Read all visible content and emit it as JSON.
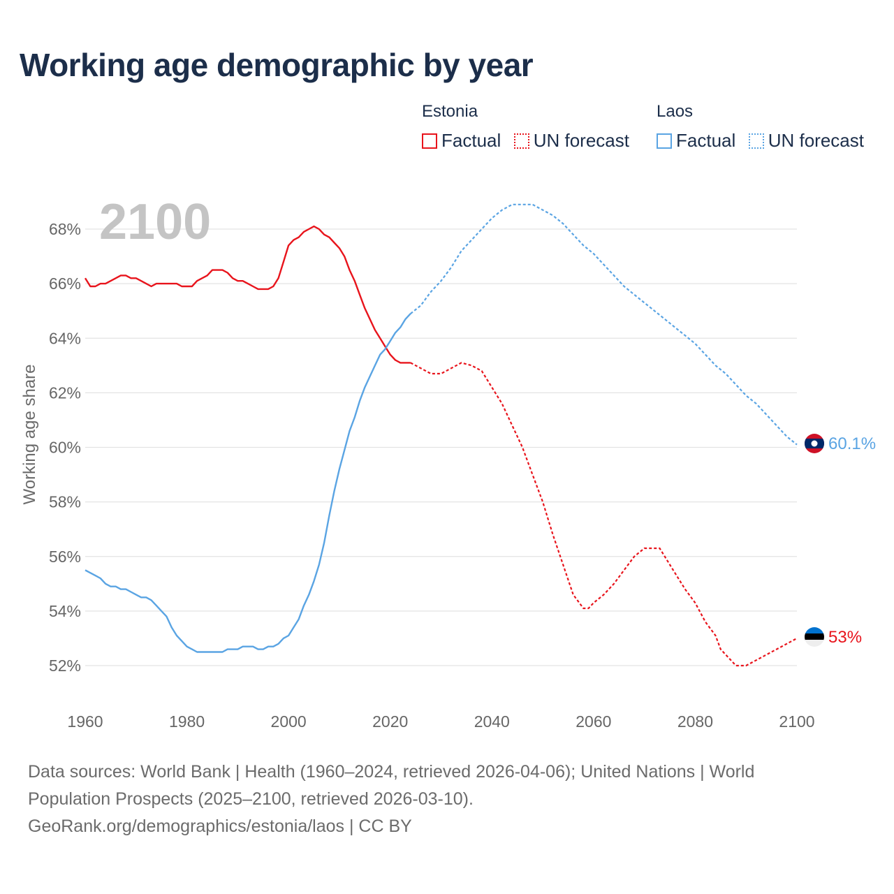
{
  "title": "Working age demographic by year",
  "legend": [
    {
      "group": "Estonia",
      "color": "#e8141c",
      "items": [
        {
          "label": "Factual",
          "style": "solid"
        },
        {
          "label": "UN forecast",
          "style": "dotted"
        }
      ]
    },
    {
      "group": "Laos",
      "color": "#5aa4e3",
      "items": [
        {
          "label": "Factual",
          "style": "solid"
        },
        {
          "label": "UN forecast",
          "style": "dotted"
        }
      ]
    }
  ],
  "year_display": "2100",
  "chart_data": {
    "type": "line",
    "title": "Working age demographic by year",
    "xlabel": "",
    "ylabel": "Working age share",
    "xlim": [
      1960,
      2100
    ],
    "ylim": [
      51.5,
      69.5
    ],
    "x_ticks": [
      1960,
      1980,
      2000,
      2020,
      2040,
      2060,
      2080,
      2100
    ],
    "y_ticks": [
      52,
      54,
      56,
      58,
      60,
      62,
      64,
      66,
      68
    ],
    "y_tick_labels": [
      "52%",
      "54%",
      "56%",
      "58%",
      "60%",
      "62%",
      "64%",
      "66%",
      "68%"
    ],
    "grid": true,
    "factual_end_year": 2024,
    "series": [
      {
        "name": "Estonia",
        "color": "#e8141c",
        "end_label": "53%",
        "points": [
          [
            1960,
            66.2
          ],
          [
            1961,
            65.9
          ],
          [
            1962,
            65.9
          ],
          [
            1963,
            66.0
          ],
          [
            1964,
            66.0
          ],
          [
            1965,
            66.1
          ],
          [
            1966,
            66.2
          ],
          [
            1967,
            66.3
          ],
          [
            1968,
            66.3
          ],
          [
            1969,
            66.2
          ],
          [
            1970,
            66.2
          ],
          [
            1971,
            66.1
          ],
          [
            1972,
            66.0
          ],
          [
            1973,
            65.9
          ],
          [
            1974,
            66.0
          ],
          [
            1975,
            66.0
          ],
          [
            1976,
            66.0
          ],
          [
            1977,
            66.0
          ],
          [
            1978,
            66.0
          ],
          [
            1979,
            65.9
          ],
          [
            1980,
            65.9
          ],
          [
            1981,
            65.9
          ],
          [
            1982,
            66.1
          ],
          [
            1983,
            66.2
          ],
          [
            1984,
            66.3
          ],
          [
            1985,
            66.5
          ],
          [
            1986,
            66.5
          ],
          [
            1987,
            66.5
          ],
          [
            1988,
            66.4
          ],
          [
            1989,
            66.2
          ],
          [
            1990,
            66.1
          ],
          [
            1991,
            66.1
          ],
          [
            1992,
            66.0
          ],
          [
            1993,
            65.9
          ],
          [
            1994,
            65.8
          ],
          [
            1995,
            65.8
          ],
          [
            1996,
            65.8
          ],
          [
            1997,
            65.9
          ],
          [
            1998,
            66.2
          ],
          [
            1999,
            66.8
          ],
          [
            2000,
            67.4
          ],
          [
            2001,
            67.6
          ],
          [
            2002,
            67.7
          ],
          [
            2003,
            67.9
          ],
          [
            2004,
            68.0
          ],
          [
            2005,
            68.1
          ],
          [
            2006,
            68.0
          ],
          [
            2007,
            67.8
          ],
          [
            2008,
            67.7
          ],
          [
            2009,
            67.5
          ],
          [
            2010,
            67.3
          ],
          [
            2011,
            67.0
          ],
          [
            2012,
            66.5
          ],
          [
            2013,
            66.1
          ],
          [
            2014,
            65.6
          ],
          [
            2015,
            65.1
          ],
          [
            2016,
            64.7
          ],
          [
            2017,
            64.3
          ],
          [
            2018,
            64.0
          ],
          [
            2019,
            63.7
          ],
          [
            2020,
            63.4
          ],
          [
            2021,
            63.2
          ],
          [
            2022,
            63.1
          ],
          [
            2023,
            63.1
          ],
          [
            2024,
            63.1
          ],
          [
            2026,
            62.9
          ],
          [
            2028,
            62.7
          ],
          [
            2030,
            62.7
          ],
          [
            2032,
            62.9
          ],
          [
            2034,
            63.1
          ],
          [
            2036,
            63.0
          ],
          [
            2038,
            62.8
          ],
          [
            2040,
            62.2
          ],
          [
            2042,
            61.6
          ],
          [
            2044,
            60.8
          ],
          [
            2046,
            60.0
          ],
          [
            2048,
            59.0
          ],
          [
            2050,
            58.0
          ],
          [
            2052,
            56.8
          ],
          [
            2054,
            55.7
          ],
          [
            2056,
            54.6
          ],
          [
            2058,
            54.1
          ],
          [
            2059,
            54.1
          ],
          [
            2060,
            54.3
          ],
          [
            2062,
            54.6
          ],
          [
            2064,
            55.0
          ],
          [
            2066,
            55.5
          ],
          [
            2068,
            56.0
          ],
          [
            2070,
            56.3
          ],
          [
            2072,
            56.3
          ],
          [
            2073,
            56.3
          ],
          [
            2074,
            56.0
          ],
          [
            2076,
            55.4
          ],
          [
            2078,
            54.8
          ],
          [
            2080,
            54.3
          ],
          [
            2082,
            53.6
          ],
          [
            2084,
            53.1
          ],
          [
            2085,
            52.6
          ],
          [
            2087,
            52.2
          ],
          [
            2088,
            52.0
          ],
          [
            2090,
            52.0
          ],
          [
            2092,
            52.2
          ],
          [
            2094,
            52.4
          ],
          [
            2096,
            52.6
          ],
          [
            2098,
            52.8
          ],
          [
            2100,
            53.0
          ]
        ]
      },
      {
        "name": "Laos",
        "color": "#5aa4e3",
        "end_label": "60.1%",
        "points": [
          [
            1960,
            55.5
          ],
          [
            1961,
            55.4
          ],
          [
            1962,
            55.3
          ],
          [
            1963,
            55.2
          ],
          [
            1964,
            55.0
          ],
          [
            1965,
            54.9
          ],
          [
            1966,
            54.9
          ],
          [
            1967,
            54.8
          ],
          [
            1968,
            54.8
          ],
          [
            1969,
            54.7
          ],
          [
            1970,
            54.6
          ],
          [
            1971,
            54.5
          ],
          [
            1972,
            54.5
          ],
          [
            1973,
            54.4
          ],
          [
            1974,
            54.2
          ],
          [
            1975,
            54.0
          ],
          [
            1976,
            53.8
          ],
          [
            1977,
            53.4
          ],
          [
            1978,
            53.1
          ],
          [
            1979,
            52.9
          ],
          [
            1980,
            52.7
          ],
          [
            1981,
            52.6
          ],
          [
            1982,
            52.5
          ],
          [
            1983,
            52.5
          ],
          [
            1984,
            52.5
          ],
          [
            1985,
            52.5
          ],
          [
            1986,
            52.5
          ],
          [
            1987,
            52.5
          ],
          [
            1988,
            52.6
          ],
          [
            1989,
            52.6
          ],
          [
            1990,
            52.6
          ],
          [
            1991,
            52.7
          ],
          [
            1992,
            52.7
          ],
          [
            1993,
            52.7
          ],
          [
            1994,
            52.6
          ],
          [
            1995,
            52.6
          ],
          [
            1996,
            52.7
          ],
          [
            1997,
            52.7
          ],
          [
            1998,
            52.8
          ],
          [
            1999,
            53.0
          ],
          [
            2000,
            53.1
          ],
          [
            2001,
            53.4
          ],
          [
            2002,
            53.7
          ],
          [
            2003,
            54.2
          ],
          [
            2004,
            54.6
          ],
          [
            2005,
            55.1
          ],
          [
            2006,
            55.7
          ],
          [
            2007,
            56.5
          ],
          [
            2008,
            57.5
          ],
          [
            2009,
            58.4
          ],
          [
            2010,
            59.2
          ],
          [
            2011,
            59.9
          ],
          [
            2012,
            60.6
          ],
          [
            2013,
            61.1
          ],
          [
            2014,
            61.7
          ],
          [
            2015,
            62.2
          ],
          [
            2016,
            62.6
          ],
          [
            2017,
            63.0
          ],
          [
            2018,
            63.4
          ],
          [
            2019,
            63.6
          ],
          [
            2020,
            63.9
          ],
          [
            2021,
            64.2
          ],
          [
            2022,
            64.4
          ],
          [
            2023,
            64.7
          ],
          [
            2024,
            64.9
          ],
          [
            2026,
            65.2
          ],
          [
            2028,
            65.7
          ],
          [
            2030,
            66.1
          ],
          [
            2032,
            66.6
          ],
          [
            2034,
            67.2
          ],
          [
            2036,
            67.6
          ],
          [
            2038,
            68.0
          ],
          [
            2040,
            68.4
          ],
          [
            2042,
            68.7
          ],
          [
            2044,
            68.9
          ],
          [
            2046,
            68.9
          ],
          [
            2048,
            68.9
          ],
          [
            2050,
            68.7
          ],
          [
            2052,
            68.5
          ],
          [
            2054,
            68.2
          ],
          [
            2056,
            67.8
          ],
          [
            2058,
            67.4
          ],
          [
            2060,
            67.1
          ],
          [
            2062,
            66.7
          ],
          [
            2064,
            66.3
          ],
          [
            2066,
            65.9
          ],
          [
            2068,
            65.6
          ],
          [
            2070,
            65.3
          ],
          [
            2072,
            65.0
          ],
          [
            2074,
            64.7
          ],
          [
            2076,
            64.4
          ],
          [
            2078,
            64.1
          ],
          [
            2080,
            63.8
          ],
          [
            2082,
            63.4
          ],
          [
            2084,
            63.0
          ],
          [
            2086,
            62.7
          ],
          [
            2088,
            62.3
          ],
          [
            2090,
            61.9
          ],
          [
            2092,
            61.6
          ],
          [
            2094,
            61.2
          ],
          [
            2096,
            60.8
          ],
          [
            2098,
            60.4
          ],
          [
            2100,
            60.1
          ]
        ]
      }
    ]
  },
  "footer": {
    "line1": "Data sources: World Bank | Health (1960–2024, retrieved 2026-04-06); United Nations | World",
    "line2": "Population Prospects (2025–2100, retrieved 2026-03-10).",
    "line3": "GeoRank.org/demographics/estonia/laos | CC BY"
  }
}
